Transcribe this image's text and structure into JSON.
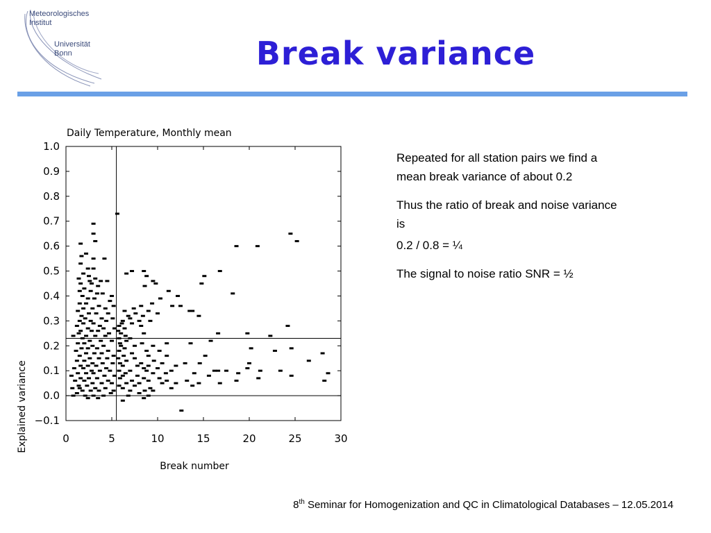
{
  "slide": {
    "title": "Break variance",
    "logo": {
      "line1a": "Meteorologisches",
      "line1b": "Institut",
      "line2a": "Universität",
      "line2b": "Bonn"
    },
    "notes": [
      "Repeated for all station pairs we find a mean break variance of about 0.2",
      "Thus the ratio of break and noise variance is",
      "0.2 / 0.8 = ¼",
      "The signal to noise ratio SNR = ½"
    ],
    "footer": {
      "ordinal": "8",
      "suffix": "th",
      "text": " Seminar for Homogenization and QC in Climatological Databases – 12.05.2014"
    }
  },
  "chart_data": {
    "type": "scatter",
    "title": "Daily Temperature, Monthly mean",
    "xlabel": "Break number",
    "ylabel": "Explained variance",
    "xlim": [
      0,
      30
    ],
    "ylim": [
      -0.1,
      1.0
    ],
    "xticks": [
      0,
      5,
      10,
      15,
      20,
      25,
      30
    ],
    "yticks": [
      -0.1,
      0.0,
      0.1,
      0.2,
      0.3,
      0.4,
      0.5,
      0.6,
      0.7,
      0.8,
      0.9,
      1.0
    ],
    "ytick_labels": [
      "−0.1",
      "0.0",
      "0.1",
      "0.2",
      "0.3",
      "0.4",
      "0.5",
      "0.6",
      "0.7",
      "0.8",
      "0.9",
      "1.0"
    ],
    "reference_lines": {
      "x": 5.5,
      "y": 0.23
    },
    "colors": {
      "marks": "#000000"
    },
    "points": [
      [
        5.6,
        0.73
      ],
      [
        3.0,
        0.69
      ],
      [
        3.0,
        0.65
      ],
      [
        3.2,
        0.62
      ],
      [
        1.6,
        0.61
      ],
      [
        2.2,
        0.57
      ],
      [
        1.7,
        0.56
      ],
      [
        3.0,
        0.55
      ],
      [
        4.2,
        0.55
      ],
      [
        1.6,
        0.53
      ],
      [
        2.4,
        0.51
      ],
      [
        3.0,
        0.51
      ],
      [
        1.9,
        0.49
      ],
      [
        2.5,
        0.48
      ],
      [
        3.2,
        0.47
      ],
      [
        1.4,
        0.47
      ],
      [
        2.6,
        0.46
      ],
      [
        3.8,
        0.46
      ],
      [
        4.5,
        0.46
      ],
      [
        1.6,
        0.45
      ],
      [
        2.8,
        0.45
      ],
      [
        3.5,
        0.44
      ],
      [
        2.0,
        0.43
      ],
      [
        1.5,
        0.42
      ],
      [
        2.7,
        0.42
      ],
      [
        3.4,
        0.41
      ],
      [
        4.0,
        0.41
      ],
      [
        5.0,
        0.4
      ],
      [
        1.8,
        0.4
      ],
      [
        2.4,
        0.39
      ],
      [
        3.1,
        0.39
      ],
      [
        4.8,
        0.38
      ],
      [
        1.5,
        0.37
      ],
      [
        2.2,
        0.37
      ],
      [
        3.6,
        0.36
      ],
      [
        5.2,
        0.36
      ],
      [
        1.9,
        0.35
      ],
      [
        2.9,
        0.35
      ],
      [
        4.3,
        0.35
      ],
      [
        1.3,
        0.34
      ],
      [
        2.5,
        0.33
      ],
      [
        3.3,
        0.33
      ],
      [
        4.6,
        0.33
      ],
      [
        1.7,
        0.32
      ],
      [
        2.1,
        0.31
      ],
      [
        3.9,
        0.31
      ],
      [
        5.1,
        0.31
      ],
      [
        1.5,
        0.3
      ],
      [
        2.7,
        0.3
      ],
      [
        4.4,
        0.3
      ],
      [
        1.9,
        0.29
      ],
      [
        3.0,
        0.29
      ],
      [
        3.7,
        0.28
      ],
      [
        1.2,
        0.28
      ],
      [
        2.4,
        0.27
      ],
      [
        4.1,
        0.27
      ],
      [
        5.3,
        0.27
      ],
      [
        1.6,
        0.26
      ],
      [
        2.8,
        0.26
      ],
      [
        3.5,
        0.26
      ],
      [
        4.7,
        0.25
      ],
      [
        1.4,
        0.25
      ],
      [
        2.2,
        0.24
      ],
      [
        3.2,
        0.24
      ],
      [
        4.3,
        0.24
      ],
      [
        0.8,
        0.24
      ],
      [
        1.8,
        0.23
      ],
      [
        2.6,
        0.22
      ],
      [
        3.8,
        0.22
      ],
      [
        5.0,
        0.22
      ],
      [
        1.3,
        0.21
      ],
      [
        2.0,
        0.21
      ],
      [
        2.9,
        0.2
      ],
      [
        4.1,
        0.2
      ],
      [
        1.7,
        0.19
      ],
      [
        2.4,
        0.19
      ],
      [
        3.4,
        0.19
      ],
      [
        4.6,
        0.18
      ],
      [
        1.1,
        0.18
      ],
      [
        2.2,
        0.17
      ],
      [
        3.1,
        0.17
      ],
      [
        3.9,
        0.17
      ],
      [
        5.2,
        0.16
      ],
      [
        1.5,
        0.16
      ],
      [
        2.6,
        0.15
      ],
      [
        3.6,
        0.15
      ],
      [
        4.5,
        0.15
      ],
      [
        1.2,
        0.14
      ],
      [
        2.0,
        0.14
      ],
      [
        2.9,
        0.13
      ],
      [
        4.0,
        0.13
      ],
      [
        5.1,
        0.13
      ],
      [
        1.6,
        0.12
      ],
      [
        2.4,
        0.12
      ],
      [
        3.3,
        0.12
      ],
      [
        4.4,
        0.11
      ],
      [
        0.9,
        0.11
      ],
      [
        1.9,
        0.11
      ],
      [
        2.8,
        0.1
      ],
      [
        3.7,
        0.1
      ],
      [
        4.8,
        0.1
      ],
      [
        1.3,
        0.09
      ],
      [
        2.2,
        0.09
      ],
      [
        3.0,
        0.09
      ],
      [
        4.2,
        0.08
      ],
      [
        5.3,
        0.08
      ],
      [
        0.6,
        0.08
      ],
      [
        1.6,
        0.07
      ],
      [
        2.5,
        0.07
      ],
      [
        3.4,
        0.07
      ],
      [
        4.6,
        0.06
      ],
      [
        1.0,
        0.06
      ],
      [
        2.0,
        0.06
      ],
      [
        2.9,
        0.05
      ],
      [
        3.9,
        0.05
      ],
      [
        5.0,
        0.05
      ],
      [
        1.4,
        0.04
      ],
      [
        2.3,
        0.04
      ],
      [
        3.2,
        0.03
      ],
      [
        4.3,
        0.03
      ],
      [
        0.7,
        0.03
      ],
      [
        1.8,
        0.02
      ],
      [
        2.7,
        0.02
      ],
      [
        3.6,
        0.02
      ],
      [
        4.9,
        0.01
      ],
      [
        1.2,
        0.01
      ],
      [
        2.1,
        0.0
      ],
      [
        3.0,
        0.0
      ],
      [
        4.1,
        0.0
      ],
      [
        5.2,
        0.02
      ],
      [
        0.8,
        0.0
      ],
      [
        3.5,
        -0.01
      ],
      [
        2.4,
        -0.01
      ],
      [
        1.5,
        0.03
      ],
      [
        6.6,
        0.49
      ],
      [
        7.2,
        0.5
      ],
      [
        8.5,
        0.5
      ],
      [
        8.8,
        0.48
      ],
      [
        9.5,
        0.46
      ],
      [
        9.8,
        0.45
      ],
      [
        8.6,
        0.44
      ],
      [
        11.2,
        0.42
      ],
      [
        12.2,
        0.4
      ],
      [
        10.3,
        0.39
      ],
      [
        9.4,
        0.37
      ],
      [
        11.6,
        0.36
      ],
      [
        8.2,
        0.36
      ],
      [
        7.4,
        0.35
      ],
      [
        9.0,
        0.34
      ],
      [
        6.4,
        0.34
      ],
      [
        7.6,
        0.33
      ],
      [
        10.0,
        0.33
      ],
      [
        13.8,
        0.34
      ],
      [
        8.4,
        0.32
      ],
      [
        6.8,
        0.32
      ],
      [
        7.0,
        0.31
      ],
      [
        8.0,
        0.3
      ],
      [
        9.2,
        0.3
      ],
      [
        6.2,
        0.3
      ],
      [
        6.1,
        0.29
      ],
      [
        7.2,
        0.29
      ],
      [
        8.2,
        0.28
      ],
      [
        5.8,
        0.28
      ],
      [
        6.4,
        0.27
      ],
      [
        5.7,
        0.26
      ],
      [
        6.0,
        0.25
      ],
      [
        6.5,
        0.24
      ],
      [
        8.5,
        0.25
      ],
      [
        7.0,
        0.23
      ],
      [
        5.8,
        0.23
      ],
      [
        6.6,
        0.22
      ],
      [
        5.9,
        0.21
      ],
      [
        8.3,
        0.21
      ],
      [
        9.5,
        0.2
      ],
      [
        7.5,
        0.2
      ],
      [
        6.0,
        0.2
      ],
      [
        6.4,
        0.19
      ],
      [
        8.8,
        0.18
      ],
      [
        10.2,
        0.18
      ],
      [
        5.8,
        0.18
      ],
      [
        7.2,
        0.17
      ],
      [
        9.0,
        0.16
      ],
      [
        6.3,
        0.16
      ],
      [
        11.0,
        0.16
      ],
      [
        5.7,
        0.15
      ],
      [
        7.5,
        0.15
      ],
      [
        9.6,
        0.14
      ],
      [
        6.6,
        0.14
      ],
      [
        8.2,
        0.13
      ],
      [
        10.5,
        0.13
      ],
      [
        5.9,
        0.13
      ],
      [
        7.8,
        0.12
      ],
      [
        9.0,
        0.12
      ],
      [
        6.2,
        0.12
      ],
      [
        8.5,
        0.11
      ],
      [
        10.0,
        0.11
      ],
      [
        5.8,
        0.1
      ],
      [
        7.0,
        0.1
      ],
      [
        8.8,
        0.1
      ],
      [
        11.5,
        0.1
      ],
      [
        6.5,
        0.09
      ],
      [
        9.5,
        0.09
      ],
      [
        7.8,
        0.08
      ],
      [
        6.2,
        0.08
      ],
      [
        8.5,
        0.07
      ],
      [
        10.2,
        0.07
      ],
      [
        5.9,
        0.07
      ],
      [
        7.2,
        0.06
      ],
      [
        9.0,
        0.06
      ],
      [
        11.0,
        0.06
      ],
      [
        6.6,
        0.05
      ],
      [
        8.0,
        0.05
      ],
      [
        10.5,
        0.05
      ],
      [
        5.8,
        0.04
      ],
      [
        7.5,
        0.04
      ],
      [
        9.2,
        0.03
      ],
      [
        6.2,
        0.03
      ],
      [
        8.6,
        0.02
      ],
      [
        7.0,
        0.02
      ],
      [
        9.5,
        0.02
      ],
      [
        8.0,
        0.01
      ],
      [
        6.8,
        0.0
      ],
      [
        9.0,
        0.0
      ],
      [
        8.5,
        -0.01
      ],
      [
        6.2,
        -0.02
      ],
      [
        15.1,
        0.48
      ],
      [
        14.8,
        0.45
      ],
      [
        12.5,
        0.36
      ],
      [
        13.5,
        0.34
      ],
      [
        14.5,
        0.32
      ],
      [
        16.8,
        0.5
      ],
      [
        18.2,
        0.41
      ],
      [
        18.6,
        0.6
      ],
      [
        20.9,
        0.6
      ],
      [
        24.5,
        0.65
      ],
      [
        25.2,
        0.62
      ],
      [
        24.2,
        0.28
      ],
      [
        22.3,
        0.24
      ],
      [
        19.8,
        0.25
      ],
      [
        16.6,
        0.25
      ],
      [
        15.8,
        0.22
      ],
      [
        13.6,
        0.21
      ],
      [
        11.0,
        0.21
      ],
      [
        20.2,
        0.19
      ],
      [
        22.8,
        0.18
      ],
      [
        24.6,
        0.19
      ],
      [
        28.0,
        0.17
      ],
      [
        26.5,
        0.14
      ],
      [
        20.0,
        0.13
      ],
      [
        19.8,
        0.11
      ],
      [
        15.2,
        0.16
      ],
      [
        14.6,
        0.13
      ],
      [
        13.0,
        0.13
      ],
      [
        12.0,
        0.12
      ],
      [
        16.2,
        0.1
      ],
      [
        16.6,
        0.1
      ],
      [
        17.5,
        0.1
      ],
      [
        18.8,
        0.09
      ],
      [
        21.2,
        0.1
      ],
      [
        23.4,
        0.1
      ],
      [
        24.6,
        0.08
      ],
      [
        28.6,
        0.09
      ],
      [
        28.2,
        0.06
      ],
      [
        18.6,
        0.06
      ],
      [
        16.8,
        0.05
      ],
      [
        14.5,
        0.05
      ],
      [
        13.2,
        0.06
      ],
      [
        12.0,
        0.05
      ],
      [
        13.8,
        0.04
      ],
      [
        12.6,
        -0.06
      ],
      [
        14.0,
        0.09
      ],
      [
        15.6,
        0.08
      ],
      [
        10.9,
        0.09
      ],
      [
        11.5,
        0.03
      ],
      [
        21.0,
        0.07
      ]
    ]
  }
}
